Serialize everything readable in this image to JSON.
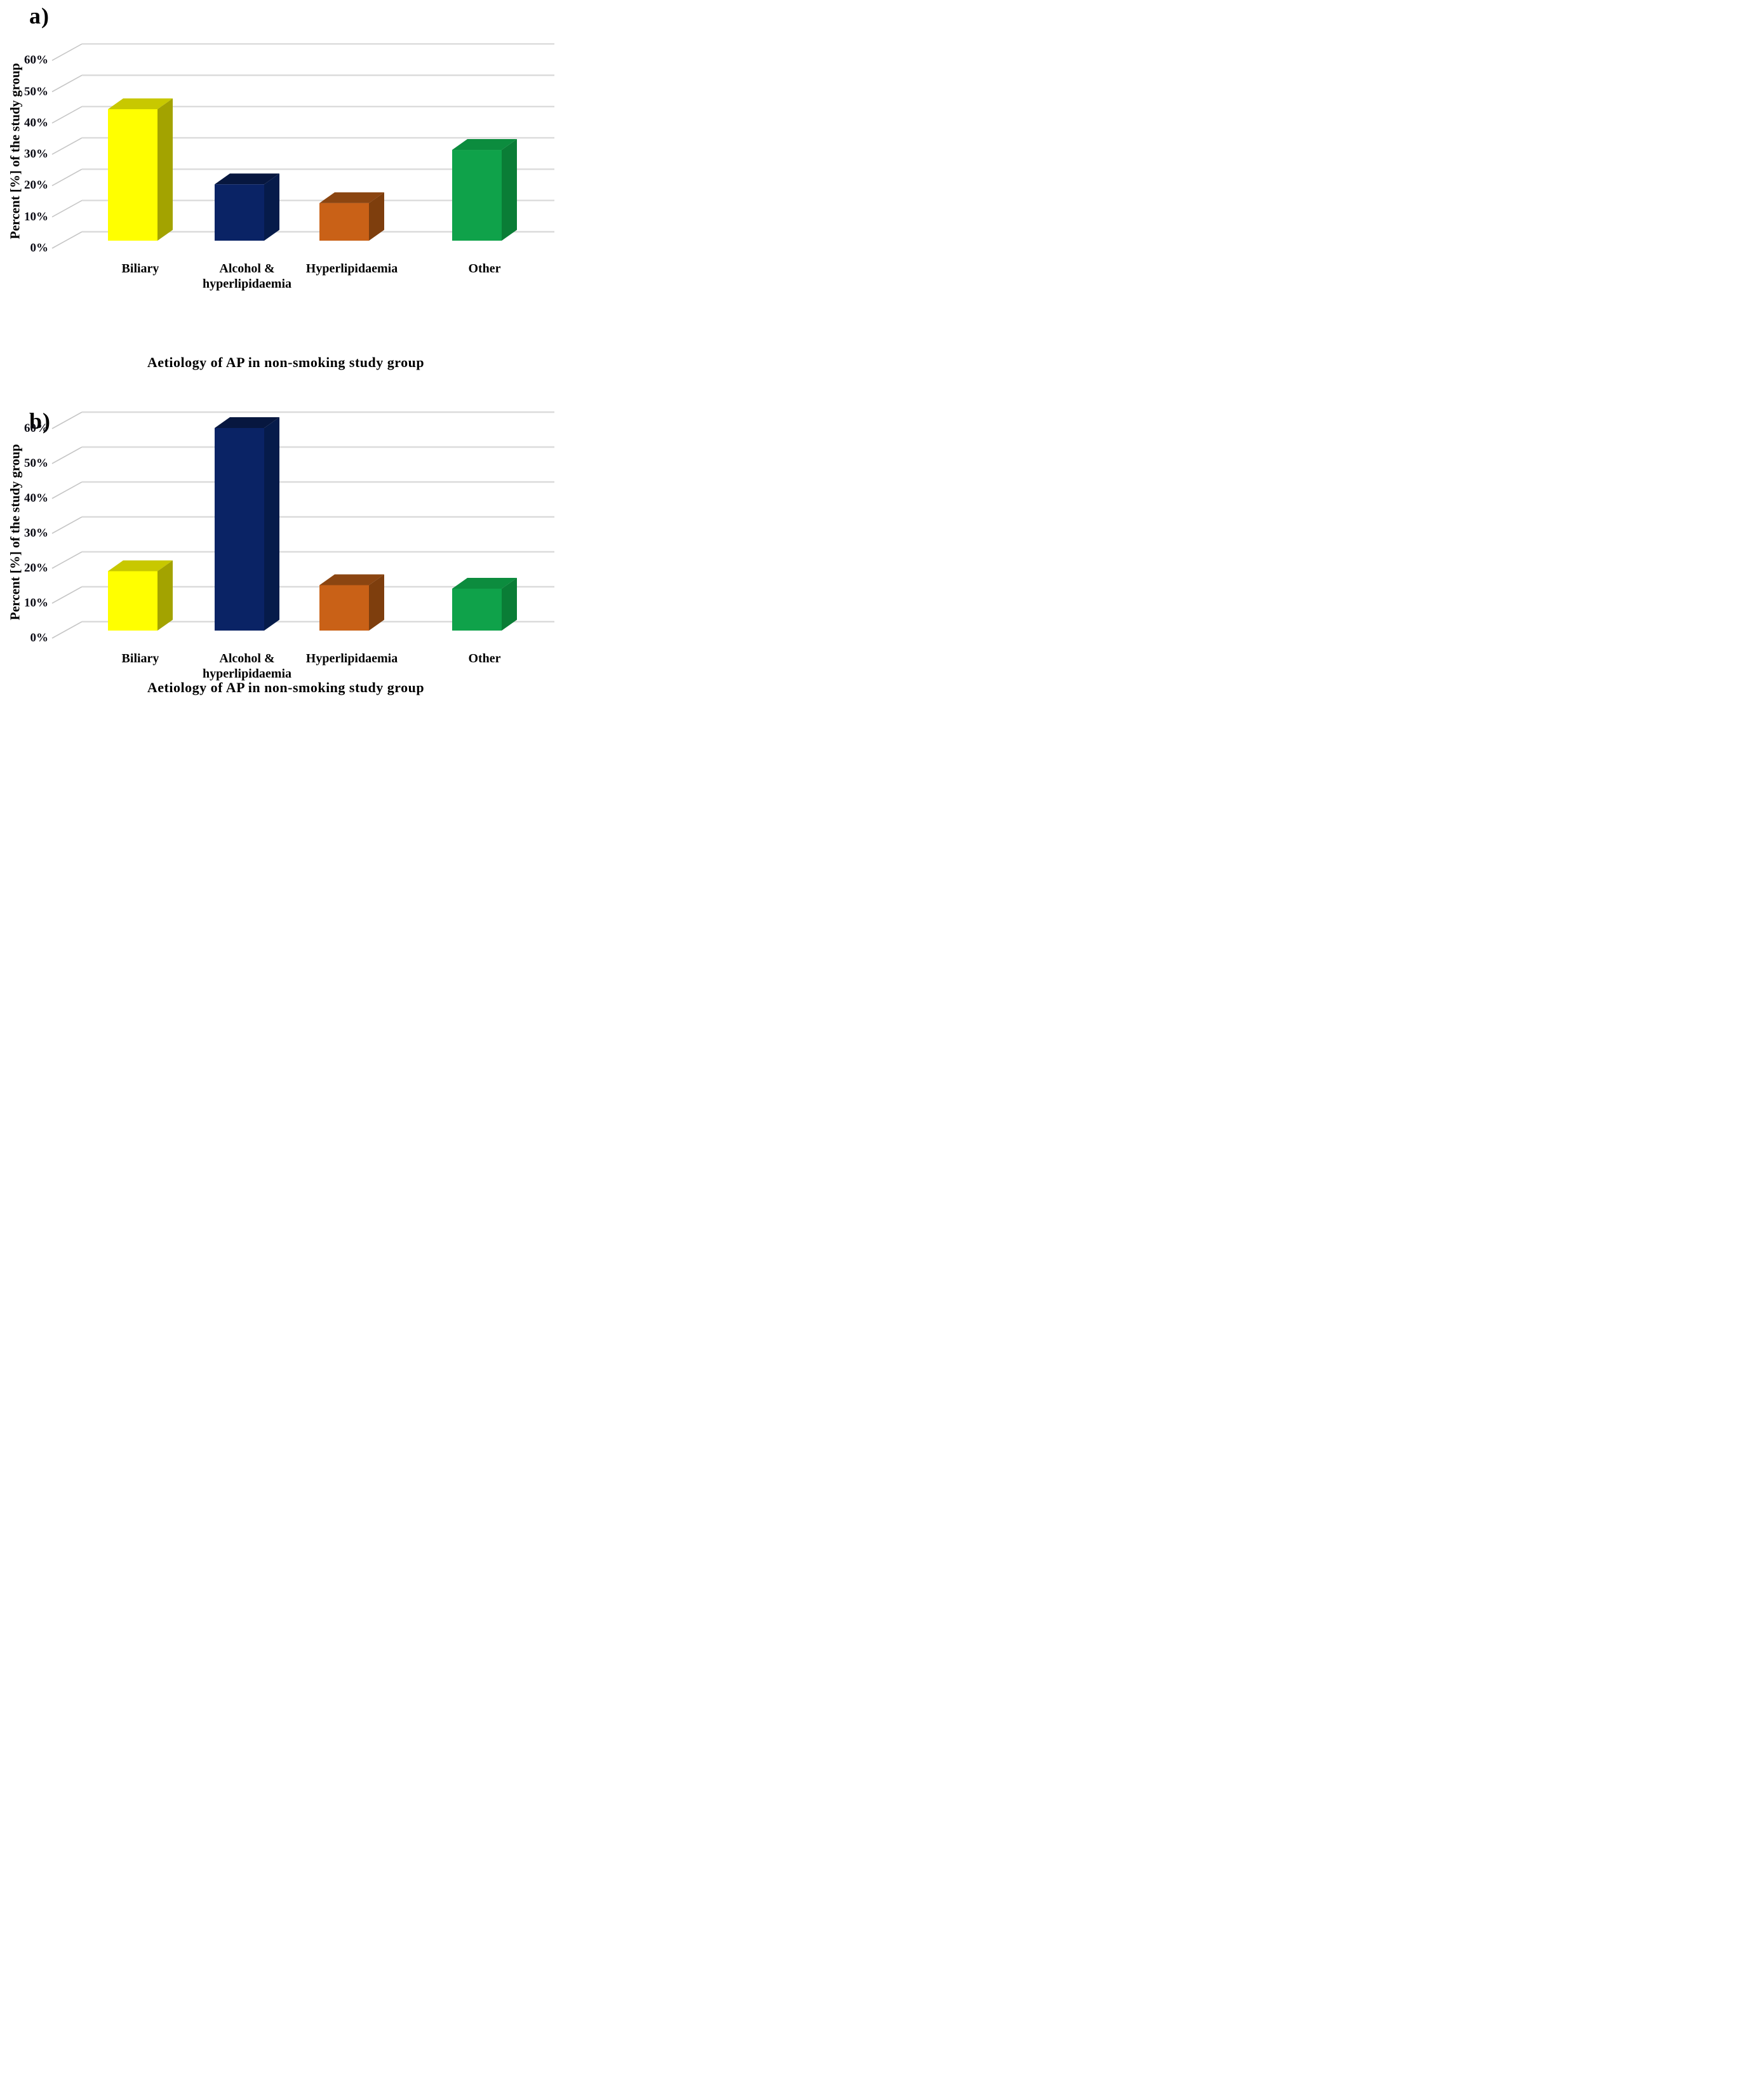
{
  "figure": {
    "background": "#ffffff",
    "text_color": "#000000",
    "tick_text_color": "#0b0b14",
    "gridline_color": "#dbdbdb",
    "connector_color": "#c6c6c6"
  },
  "chart_data": [
    {
      "type": "bar",
      "panel_label": "a)",
      "title": "Aetiology of AP in non-smoking study group",
      "ylabel": "Percent [%] of the study group",
      "categories": [
        "Biliary",
        "Alcohol & hyperlipidaemia",
        "Hyperlipidaemia",
        "Other"
      ],
      "category_display_lines": [
        [
          "Biliary"
        ],
        [
          "Alcohol &",
          "hyperlipidaemia"
        ],
        [
          "Hyperlipidaemia"
        ],
        [
          "Other"
        ]
      ],
      "values": [
        42,
        18,
        12,
        29
      ],
      "unit": "%",
      "ylim": [
        0,
        60
      ],
      "tick_step": 10,
      "tick_labels": [
        "0%",
        "10%",
        "20%",
        "30%",
        "40%",
        "50%",
        "60%"
      ],
      "grid": true,
      "legend": false,
      "style_3d": true,
      "bar_colors": [
        {
          "name": "yellow",
          "front": "#ffff00",
          "top": "#c8c800",
          "side": "#a3a300"
        },
        {
          "name": "navy",
          "front": "#0a2365",
          "top": "#07173f",
          "side": "#061b4a"
        },
        {
          "name": "orange",
          "front": "#c96117",
          "top": "#8b4511",
          "side": "#7e3e0d"
        },
        {
          "name": "green",
          "front": "#0fa24a",
          "top": "#0c8c3e",
          "side": "#0a7d36"
        }
      ]
    },
    {
      "type": "bar",
      "panel_label": "b)",
      "title": "Aetiology of AP in non-smoking study group",
      "ylabel": "Percent [%] of the study group",
      "categories": [
        "Biliary",
        "Alcohol & hyperlipidaemia",
        "Hyperlipidaemia",
        "Other"
      ],
      "category_display_lines": [
        [
          "Biliary"
        ],
        [
          "Alcohol &",
          "hyperlipidaemia"
        ],
        [
          "Hyperlipidaemia"
        ],
        [
          "Other"
        ]
      ],
      "values": [
        17,
        58,
        13,
        12
      ],
      "unit": "%",
      "ylim": [
        0,
        60
      ],
      "tick_step": 10,
      "tick_labels": [
        "0%",
        "10%",
        "20%",
        "30%",
        "40%",
        "50%",
        "60%"
      ],
      "grid": true,
      "legend": false,
      "style_3d": true,
      "bar_colors": [
        {
          "name": "yellow",
          "front": "#ffff00",
          "top": "#c8c800",
          "side": "#a3a300"
        },
        {
          "name": "navy",
          "front": "#0a2365",
          "top": "#07173f",
          "side": "#061b4a"
        },
        {
          "name": "orange",
          "front": "#c96117",
          "top": "#8b4511",
          "side": "#7e3e0d"
        },
        {
          "name": "green",
          "front": "#0fa24a",
          "top": "#0c8c3e",
          "side": "#0a7d36"
        }
      ]
    }
  ]
}
